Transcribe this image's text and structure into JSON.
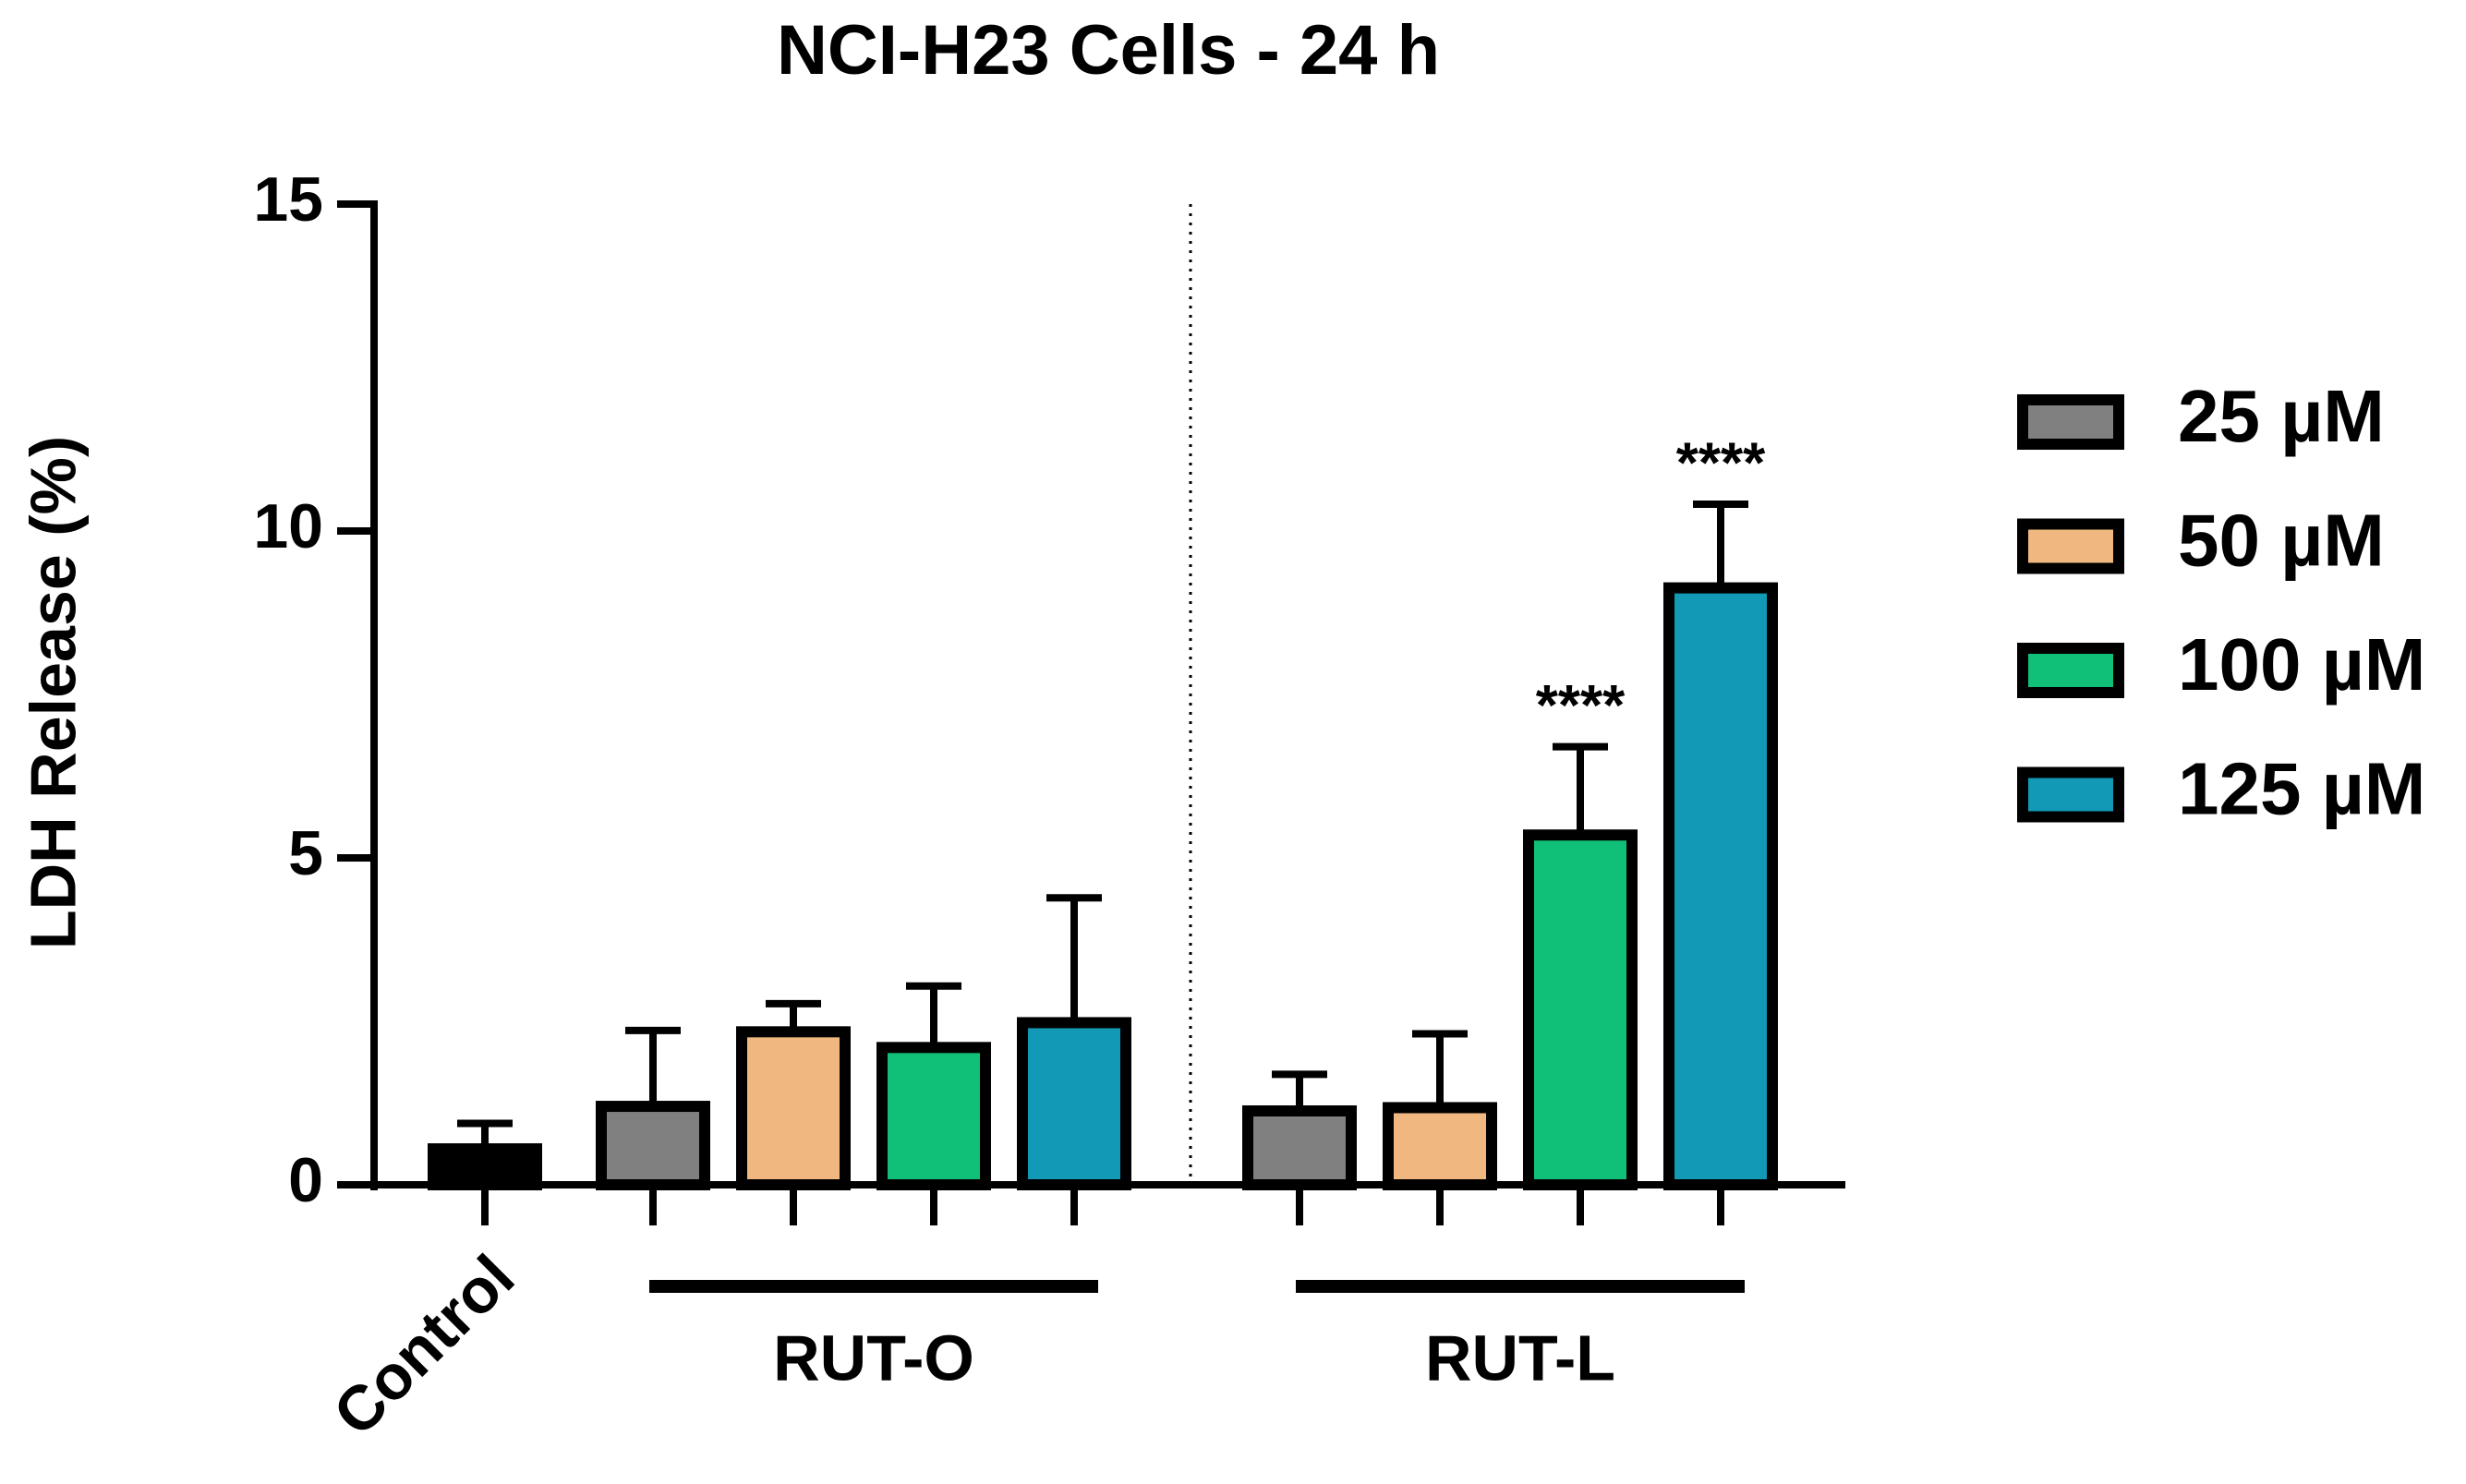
{
  "chart_data": {
    "type": "bar",
    "title": "NCI-H23 Cells - 24 h",
    "y_label": "LDH Release (%)",
    "ylim": [
      0,
      15
    ],
    "yticks": [
      0,
      5,
      10,
      15
    ],
    "control": {
      "label": "Control",
      "value": 0.55,
      "error": 0.39,
      "color": "#000000"
    },
    "groups": [
      "RUT-O",
      "RUT-L"
    ],
    "series": [
      {
        "name": "25 µM",
        "color": "#808080",
        "values": [
          1.2,
          1.13
        ],
        "errors": [
          1.16,
          0.56
        ],
        "annotations": [
          null,
          null
        ]
      },
      {
        "name": "50 µM",
        "color": "#f0b880",
        "values": [
          2.34,
          1.18
        ],
        "errors": [
          0.43,
          1.13
        ],
        "annotations": [
          null,
          null
        ]
      },
      {
        "name": "100 µM",
        "color": "#10c078",
        "values": [
          2.1,
          5.35
        ],
        "errors": [
          0.94,
          1.35
        ],
        "annotations": [
          null,
          "****"
        ]
      },
      {
        "name": "125 µM",
        "color": "#1199b5",
        "values": [
          2.48,
          9.13
        ],
        "errors": [
          1.91,
          1.28
        ],
        "annotations": [
          null,
          "****"
        ]
      }
    ]
  }
}
